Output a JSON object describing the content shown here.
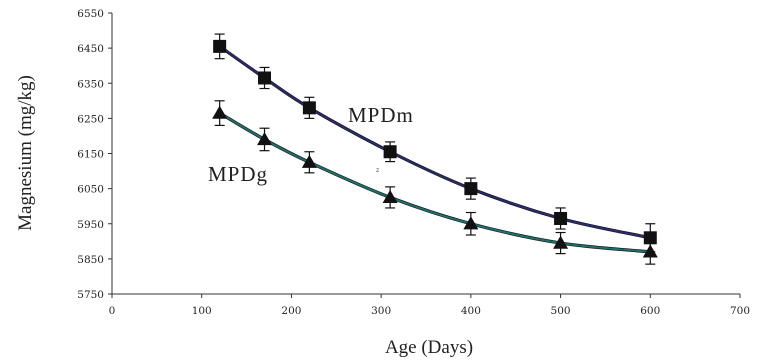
{
  "chart_data": {
    "type": "line",
    "title": "",
    "xlabel": "Age (Days)",
    "ylabel": "Magnesium (mg/kg)",
    "xlim": [
      0,
      700
    ],
    "ylim": [
      5750,
      6550
    ],
    "x_ticks": [
      0,
      100,
      200,
      300,
      400,
      500,
      600,
      700
    ],
    "y_ticks": [
      5750,
      5850,
      5950,
      6050,
      6150,
      6250,
      6350,
      6450,
      6550
    ],
    "grid": false,
    "legend": "none",
    "stray_text": "z",
    "series": [
      {
        "name": "MPDm",
        "marker": "square",
        "line_color": "#2b2b6e",
        "x": [
          120,
          170,
          220,
          310,
          400,
          500,
          600
        ],
        "y": [
          6455,
          6365,
          6280,
          6155,
          6050,
          5965,
          5910
        ],
        "error": [
          35,
          30,
          30,
          28,
          30,
          30,
          40
        ]
      },
      {
        "name": "MPDg",
        "marker": "triangle",
        "line_color": "#1f6f6a",
        "x": [
          120,
          170,
          220,
          310,
          400,
          500,
          600
        ],
        "y": [
          6265,
          6190,
          6125,
          6025,
          5950,
          5895,
          5870
        ],
        "error": [
          35,
          32,
          30,
          30,
          32,
          30,
          35
        ]
      }
    ]
  }
}
